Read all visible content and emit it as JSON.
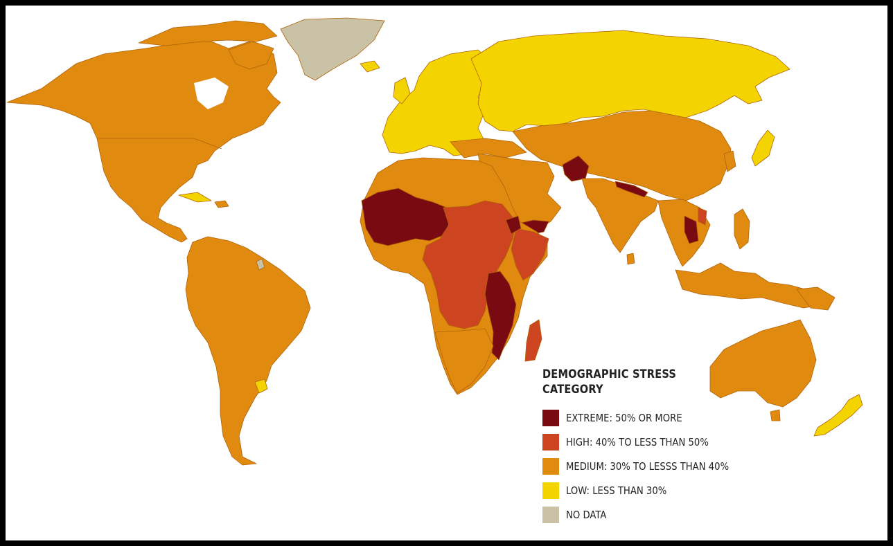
{
  "legend": {
    "title_line1": "DEMOGRAPHIC STRESS",
    "title_line2": "CATEGORY",
    "items": [
      {
        "label": "EXTREME: 50% OR MORE",
        "color": "#7a0a12"
      },
      {
        "label": "HIGH: 40% TO LESS THAN 50%",
        "color": "#cc4420"
      },
      {
        "label": "MEDIUM: 30% TO LESSS THAN 40%",
        "color": "#e08a10"
      },
      {
        "label": "LOW: LESS THAN 30%",
        "color": "#f4d400"
      },
      {
        "label": "NO DATA",
        "color": "#c9c2a6"
      }
    ]
  },
  "colors": {
    "extreme": "#7a0a12",
    "high": "#cc4420",
    "medium": "#e08a10",
    "low": "#f4d400",
    "nodata": "#c9c2a6",
    "border": "#b86a0a",
    "frame": "#000000",
    "ocean": "#ffffff"
  }
}
